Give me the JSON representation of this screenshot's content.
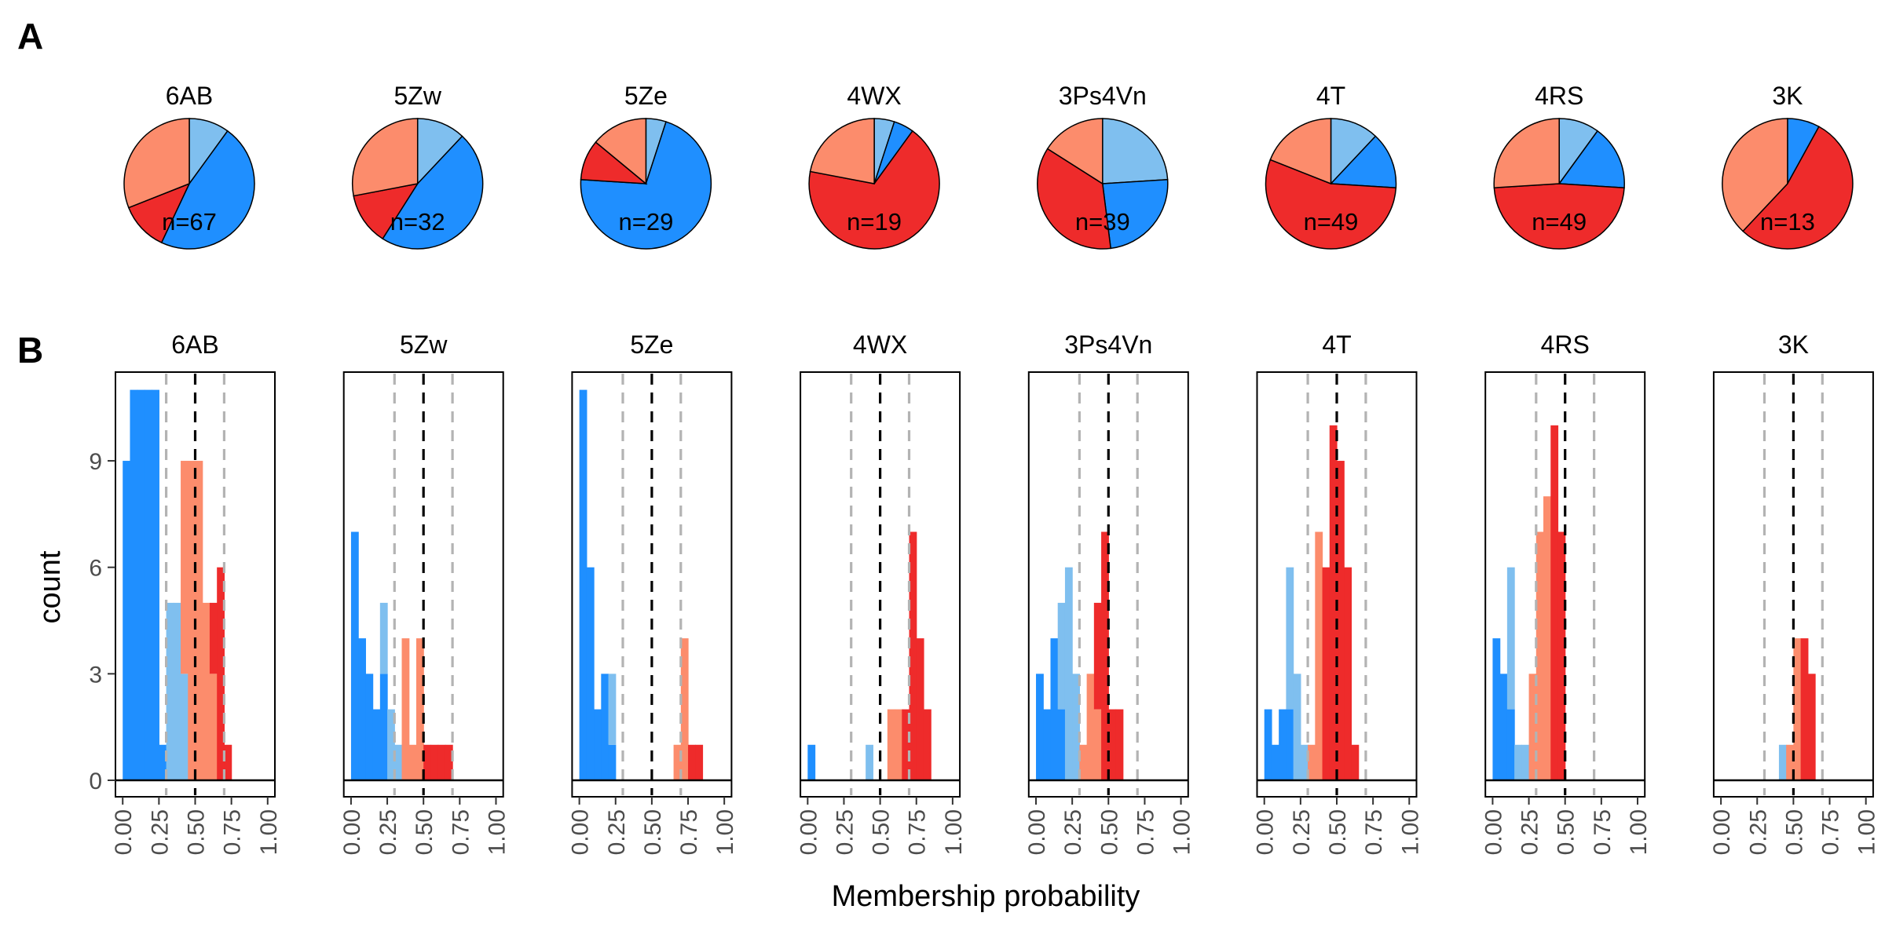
{
  "figure": {
    "panel_a_label": "A",
    "panel_b_label": "B",
    "ylabel": "count",
    "xlabel": "Membership probability",
    "x_ticks": [
      "0.00",
      "0.25",
      "0.50",
      "0.75",
      "1.00"
    ],
    "y_ticks": [
      "0",
      "3",
      "6",
      "9"
    ]
  },
  "colors": {
    "dark_blue": "#1f8fff",
    "light_blue": "#7fbfef",
    "salmon": "#fc8c6c",
    "red": "#ee2b2b",
    "dashed_center": "#000000",
    "dashed_side": "#b3b3b3"
  },
  "chart_data": [
    {
      "type": "pie",
      "panel": "A",
      "title": "6AB",
      "label": "n=67",
      "slices": [
        {
          "color_key": "light_blue",
          "value": 0.1
        },
        {
          "color_key": "dark_blue",
          "value": 0.47
        },
        {
          "color_key": "red",
          "value": 0.12
        },
        {
          "color_key": "salmon",
          "value": 0.31
        }
      ]
    },
    {
      "type": "pie",
      "panel": "A",
      "title": "5Zw",
      "label": "n=32",
      "slices": [
        {
          "color_key": "light_blue",
          "value": 0.12
        },
        {
          "color_key": "dark_blue",
          "value": 0.47
        },
        {
          "color_key": "red",
          "value": 0.13
        },
        {
          "color_key": "salmon",
          "value": 0.28
        }
      ]
    },
    {
      "type": "pie",
      "panel": "A",
      "title": "5Ze",
      "label": "n=29",
      "slices": [
        {
          "color_key": "light_blue",
          "value": 0.05
        },
        {
          "color_key": "dark_blue",
          "value": 0.71
        },
        {
          "color_key": "red",
          "value": 0.1
        },
        {
          "color_key": "salmon",
          "value": 0.14
        }
      ]
    },
    {
      "type": "pie",
      "panel": "A",
      "title": "4WX",
      "label": "n=19",
      "slices": [
        {
          "color_key": "light_blue",
          "value": 0.05
        },
        {
          "color_key": "dark_blue",
          "value": 0.05
        },
        {
          "color_key": "red",
          "value": 0.68
        },
        {
          "color_key": "salmon",
          "value": 0.22
        }
      ]
    },
    {
      "type": "pie",
      "panel": "A",
      "title": "3Ps4Vn",
      "label": "n=39",
      "slices": [
        {
          "color_key": "light_blue",
          "value": 0.24
        },
        {
          "color_key": "dark_blue",
          "value": 0.24
        },
        {
          "color_key": "red",
          "value": 0.36
        },
        {
          "color_key": "salmon",
          "value": 0.16
        }
      ]
    },
    {
      "type": "pie",
      "panel": "A",
      "title": "4T",
      "label": "n=49",
      "slices": [
        {
          "color_key": "light_blue",
          "value": 0.12
        },
        {
          "color_key": "dark_blue",
          "value": 0.14
        },
        {
          "color_key": "red",
          "value": 0.55
        },
        {
          "color_key": "salmon",
          "value": 0.19
        }
      ]
    },
    {
      "type": "pie",
      "panel": "A",
      "title": "4RS",
      "label": "n=49",
      "slices": [
        {
          "color_key": "light_blue",
          "value": 0.1
        },
        {
          "color_key": "dark_blue",
          "value": 0.16
        },
        {
          "color_key": "red",
          "value": 0.48
        },
        {
          "color_key": "salmon",
          "value": 0.26
        }
      ]
    },
    {
      "type": "pie",
      "panel": "A",
      "title": "3K",
      "label": "n=13",
      "slices": [
        {
          "color_key": "light_blue",
          "value": 0.0
        },
        {
          "color_key": "dark_blue",
          "value": 0.08
        },
        {
          "color_key": "red",
          "value": 0.54
        },
        {
          "color_key": "salmon",
          "value": 0.38
        }
      ]
    },
    {
      "type": "bar",
      "panel": "B",
      "title": "6AB",
      "xlabel": "Membership probability",
      "ylabel": "count",
      "xlim": [
        -0.05,
        1.05
      ],
      "ylim": [
        0,
        11.5
      ],
      "bin_width": 0.05,
      "reference_lines": [
        0.3,
        0.5,
        0.7
      ],
      "bins": [
        {
          "x": 0.0,
          "dark_blue": 9
        },
        {
          "x": 0.05,
          "dark_blue": 11
        },
        {
          "x": 0.1,
          "dark_blue": 11
        },
        {
          "x": 0.15,
          "dark_blue": 11
        },
        {
          "x": 0.2,
          "dark_blue": 11
        },
        {
          "x": 0.25,
          "dark_blue": 1
        },
        {
          "x": 0.3,
          "light_blue": 5
        },
        {
          "x": 0.35,
          "light_blue": 5
        },
        {
          "x": 0.4,
          "light_blue": 3,
          "salmon": 6
        },
        {
          "x": 0.45,
          "salmon": 9
        },
        {
          "x": 0.5,
          "salmon": 9
        },
        {
          "x": 0.55,
          "salmon": 5
        },
        {
          "x": 0.6,
          "red": 2,
          "salmon": 3
        },
        {
          "x": 0.65,
          "red": 6
        },
        {
          "x": 0.7,
          "red": 1
        }
      ]
    },
    {
      "type": "bar",
      "panel": "B",
      "title": "5Zw",
      "xlabel": "Membership probability",
      "ylabel": "count",
      "xlim": [
        -0.05,
        1.05
      ],
      "ylim": [
        0,
        11.5
      ],
      "bin_width": 0.05,
      "reference_lines": [
        0.3,
        0.5,
        0.7
      ],
      "bins": [
        {
          "x": 0.0,
          "dark_blue": 7
        },
        {
          "x": 0.05,
          "dark_blue": 4
        },
        {
          "x": 0.1,
          "dark_blue": 3
        },
        {
          "x": 0.15,
          "dark_blue": 2
        },
        {
          "x": 0.2,
          "dark_blue": 3,
          "light_blue": 2
        },
        {
          "x": 0.25,
          "light_blue": 2
        },
        {
          "x": 0.3,
          "light_blue": 1
        },
        {
          "x": 0.35,
          "salmon": 4
        },
        {
          "x": 0.4,
          "salmon": 1
        },
        {
          "x": 0.45,
          "salmon": 4
        },
        {
          "x": 0.5,
          "red": 1
        },
        {
          "x": 0.55,
          "red": 1
        },
        {
          "x": 0.6,
          "red": 1
        },
        {
          "x": 0.65,
          "red": 1
        }
      ]
    },
    {
      "type": "bar",
      "panel": "B",
      "title": "5Ze",
      "xlabel": "Membership probability",
      "ylabel": "count",
      "xlim": [
        -0.05,
        1.05
      ],
      "ylim": [
        0,
        11.5
      ],
      "bin_width": 0.05,
      "reference_lines": [
        0.3,
        0.5,
        0.7
      ],
      "bins": [
        {
          "x": 0.0,
          "dark_blue": 11
        },
        {
          "x": 0.05,
          "dark_blue": 6
        },
        {
          "x": 0.1,
          "dark_blue": 2
        },
        {
          "x": 0.15,
          "dark_blue": 3
        },
        {
          "x": 0.2,
          "dark_blue": 1,
          "light_blue": 2
        },
        {
          "x": 0.65,
          "salmon": 1
        },
        {
          "x": 0.7,
          "salmon": 4
        },
        {
          "x": 0.75,
          "red": 1
        },
        {
          "x": 0.8,
          "red": 1
        }
      ]
    },
    {
      "type": "bar",
      "panel": "B",
      "title": "4WX",
      "xlabel": "Membership probability",
      "ylabel": "count",
      "xlim": [
        -0.05,
        1.05
      ],
      "ylim": [
        0,
        11.5
      ],
      "bin_width": 0.05,
      "reference_lines": [
        0.3,
        0.5,
        0.7
      ],
      "bins": [
        {
          "x": 0.0,
          "dark_blue": 1
        },
        {
          "x": 0.4,
          "light_blue": 1
        },
        {
          "x": 0.55,
          "salmon": 2
        },
        {
          "x": 0.6,
          "salmon": 2
        },
        {
          "x": 0.65,
          "red": 2
        },
        {
          "x": 0.7,
          "red": 7
        },
        {
          "x": 0.75,
          "red": 4
        },
        {
          "x": 0.8,
          "red": 2
        }
      ]
    },
    {
      "type": "bar",
      "panel": "B",
      "title": "3Ps4Vn",
      "xlabel": "Membership probability",
      "ylabel": "count",
      "xlim": [
        -0.05,
        1.05
      ],
      "ylim": [
        0,
        11.5
      ],
      "bin_width": 0.05,
      "reference_lines": [
        0.3,
        0.5,
        0.7
      ],
      "bins": [
        {
          "x": 0.0,
          "dark_blue": 3
        },
        {
          "x": 0.05,
          "dark_blue": 2
        },
        {
          "x": 0.1,
          "dark_blue": 4
        },
        {
          "x": 0.15,
          "dark_blue": 2,
          "light_blue": 3
        },
        {
          "x": 0.2,
          "light_blue": 6
        },
        {
          "x": 0.25,
          "light_blue": 3
        },
        {
          "x": 0.3,
          "salmon": 1
        },
        {
          "x": 0.35,
          "salmon": 3
        },
        {
          "x": 0.4,
          "salmon": 2,
          "red": 3
        },
        {
          "x": 0.45,
          "red": 7
        },
        {
          "x": 0.5,
          "red": 2
        },
        {
          "x": 0.55,
          "red": 2
        }
      ]
    },
    {
      "type": "bar",
      "panel": "B",
      "title": "4T",
      "xlabel": "Membership probability",
      "ylabel": "count",
      "xlim": [
        -0.05,
        1.05
      ],
      "ylim": [
        0,
        11.5
      ],
      "bin_width": 0.05,
      "reference_lines": [
        0.3,
        0.5,
        0.7
      ],
      "bins": [
        {
          "x": 0.0,
          "dark_blue": 2
        },
        {
          "x": 0.05,
          "dark_blue": 1
        },
        {
          "x": 0.1,
          "dark_blue": 2
        },
        {
          "x": 0.15,
          "dark_blue": 2,
          "light_blue": 4
        },
        {
          "x": 0.2,
          "light_blue": 3
        },
        {
          "x": 0.25,
          "light_blue": 1
        },
        {
          "x": 0.3,
          "salmon": 1
        },
        {
          "x": 0.35,
          "salmon": 7
        },
        {
          "x": 0.4,
          "red": 6
        },
        {
          "x": 0.45,
          "red": 10
        },
        {
          "x": 0.5,
          "red": 9
        },
        {
          "x": 0.55,
          "red": 6
        },
        {
          "x": 0.6,
          "red": 1
        }
      ]
    },
    {
      "type": "bar",
      "panel": "B",
      "title": "4RS",
      "xlabel": "Membership probability",
      "ylabel": "count",
      "xlim": [
        -0.05,
        1.05
      ],
      "ylim": [
        0,
        11.5
      ],
      "bin_width": 0.05,
      "reference_lines": [
        0.3,
        0.5,
        0.7
      ],
      "bins": [
        {
          "x": 0.0,
          "dark_blue": 4
        },
        {
          "x": 0.05,
          "dark_blue": 3
        },
        {
          "x": 0.1,
          "dark_blue": 2,
          "light_blue": 4
        },
        {
          "x": 0.15,
          "light_blue": 1
        },
        {
          "x": 0.2,
          "light_blue": 1
        },
        {
          "x": 0.25,
          "salmon": 3
        },
        {
          "x": 0.3,
          "salmon": 7
        },
        {
          "x": 0.35,
          "salmon": 8
        },
        {
          "x": 0.4,
          "red": 10
        },
        {
          "x": 0.45,
          "red": 7
        }
      ]
    },
    {
      "type": "bar",
      "panel": "B",
      "title": "3K",
      "xlabel": "Membership probability",
      "ylabel": "count",
      "xlim": [
        -0.05,
        1.05
      ],
      "ylim": [
        0,
        11.5
      ],
      "bin_width": 0.05,
      "reference_lines": [
        0.3,
        0.5,
        0.7
      ],
      "bins": [
        {
          "x": 0.4,
          "light_blue": 1
        },
        {
          "x": 0.45,
          "salmon": 1
        },
        {
          "x": 0.5,
          "salmon": 4
        },
        {
          "x": 0.55,
          "red": 4
        },
        {
          "x": 0.6,
          "red": 3
        }
      ]
    }
  ]
}
